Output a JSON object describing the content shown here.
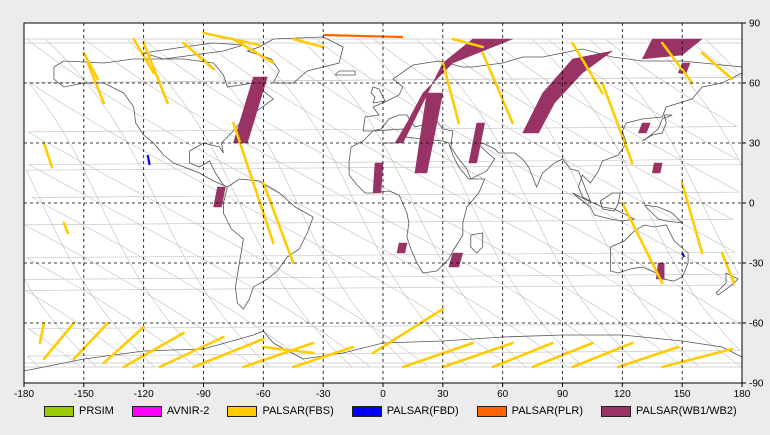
{
  "map": {
    "lon_range": [
      -180,
      180
    ],
    "lat_range": [
      -90,
      90
    ],
    "x_ticks": [
      -180,
      -150,
      -120,
      -90,
      -60,
      -30,
      0,
      30,
      60,
      90,
      120,
      150,
      180
    ],
    "x_tick_labels": [
      "-180",
      "-150",
      "-120",
      "-90",
      "-60",
      "-30",
      "0",
      "30",
      "60",
      "90",
      "120",
      "150",
      "180"
    ],
    "y_ticks": [
      90,
      60,
      30,
      0,
      -30,
      -60,
      -90
    ],
    "y_tick_labels": [
      "90",
      "60",
      "30",
      "0",
      "-30",
      "-60",
      "-90"
    ],
    "grid": "dashed",
    "background_color": "#ffffff",
    "coastline_color": "#555555",
    "orbit_color": "#c8c8c8",
    "orbit_start_lons": [
      -168,
      -139,
      -110,
      -81,
      -52,
      -23,
      6,
      35,
      64,
      93,
      122,
      151
    ],
    "coverage": {
      "fbs": [
        [
          [
            -170,
            -60
          ],
          [
            -172,
            -70
          ]
        ],
        [
          [
            -155,
            -60
          ],
          [
            -170,
            -78
          ]
        ],
        [
          [
            -138,
            -60
          ],
          [
            -155,
            -78
          ]
        ],
        [
          [
            -120,
            -62
          ],
          [
            -140,
            -80
          ]
        ],
        [
          [
            -100,
            -65
          ],
          [
            -130,
            -82
          ]
        ],
        [
          [
            -80,
            -67
          ],
          [
            -112,
            -82
          ]
        ],
        [
          [
            -60,
            -68
          ],
          [
            -95,
            -82
          ]
        ],
        [
          [
            -35,
            -70
          ],
          [
            -70,
            -82
          ]
        ],
        [
          [
            -15,
            -72
          ],
          [
            -45,
            -82
          ]
        ],
        [
          [
            30,
            -53
          ],
          [
            -5,
            -75
          ]
        ],
        [
          [
            45,
            -70
          ],
          [
            10,
            -82
          ]
        ],
        [
          [
            65,
            -70
          ],
          [
            30,
            -82
          ]
        ],
        [
          [
            85,
            -70
          ],
          [
            55,
            -82
          ]
        ],
        [
          [
            105,
            -70
          ],
          [
            75,
            -82
          ]
        ],
        [
          [
            125,
            -70
          ],
          [
            95,
            -82
          ]
        ],
        [
          [
            148,
            -72
          ],
          [
            118,
            -82
          ]
        ],
        [
          [
            175,
            -73
          ],
          [
            140,
            -82
          ]
        ],
        [
          [
            -150,
            75
          ],
          [
            -143,
            62
          ]
        ],
        [
          [
            -125,
            82
          ],
          [
            -115,
            65
          ]
        ],
        [
          [
            -100,
            80
          ],
          [
            -85,
            67
          ]
        ],
        [
          [
            -75,
            82
          ],
          [
            -55,
            70
          ]
        ],
        [
          [
            -45,
            82
          ],
          [
            -30,
            78
          ]
        ],
        [
          [
            -148,
            70
          ],
          [
            -140,
            50
          ]
        ],
        [
          [
            -120,
            80
          ],
          [
            -108,
            50
          ]
        ],
        [
          [
            -90,
            85
          ],
          [
            -62,
            79
          ]
        ],
        [
          [
            35,
            82
          ],
          [
            50,
            78
          ]
        ],
        [
          [
            -170,
            30
          ],
          [
            -166,
            18
          ]
        ],
        [
          [
            -75,
            40
          ],
          [
            -55,
            -20
          ]
        ],
        [
          [
            -60,
            10
          ],
          [
            -45,
            -30
          ]
        ],
        [
          [
            30,
            70
          ],
          [
            38,
            40
          ]
        ],
        [
          [
            50,
            75
          ],
          [
            65,
            40
          ]
        ],
        [
          [
            95,
            80
          ],
          [
            110,
            55
          ]
        ],
        [
          [
            110,
            60
          ],
          [
            125,
            20
          ]
        ],
        [
          [
            140,
            80
          ],
          [
            155,
            60
          ]
        ],
        [
          [
            160,
            75
          ],
          [
            175,
            62
          ]
        ],
        [
          [
            120,
            0
          ],
          [
            140,
            -40
          ]
        ],
        [
          [
            150,
            10
          ],
          [
            160,
            -25
          ]
        ],
        [
          [
            170,
            -25
          ],
          [
            176,
            -40
          ]
        ],
        [
          [
            -160,
            -10
          ],
          [
            -158,
            -15
          ]
        ],
        [
          [
            -60,
            -72
          ],
          [
            -35,
            -75
          ]
        ]
      ],
      "fbd": [
        [
          [
            -118,
            24
          ],
          [
            -117,
            19
          ]
        ],
        [
          [
            150,
            -25
          ],
          [
            151,
            -27
          ]
        ]
      ],
      "plr": [
        [
          [
            -30,
            84
          ],
          [
            10,
            83
          ]
        ]
      ]
    },
    "wide_swaths": [
      {
        "points": [
          [
            -65,
            63
          ],
          [
            -58,
            63
          ],
          [
            -68,
            30
          ],
          [
            -75,
            30
          ]
        ]
      },
      {
        "points": [
          [
            -83,
            8
          ],
          [
            -79,
            8
          ],
          [
            -81,
            -2
          ],
          [
            -85,
            -2
          ]
        ]
      },
      {
        "points": [
          [
            0,
            30
          ],
          [
            10,
            30
          ],
          [
            20,
            50
          ],
          [
            30,
            70
          ],
          [
            45,
            82
          ],
          [
            65,
            82
          ],
          [
            35,
            70
          ],
          [
            20,
            55
          ],
          [
            12,
            40
          ],
          [
            6,
            30
          ]
        ]
      },
      {
        "points": [
          [
            -5,
            5
          ],
          [
            -1,
            5
          ],
          [
            0,
            20
          ],
          [
            -4,
            20
          ]
        ]
      },
      {
        "points": [
          [
            22,
            55
          ],
          [
            30,
            55
          ],
          [
            22,
            15
          ],
          [
            16,
            15
          ]
        ]
      },
      {
        "points": [
          [
            47,
            40
          ],
          [
            51,
            40
          ],
          [
            47,
            20
          ],
          [
            43,
            20
          ]
        ]
      },
      {
        "points": [
          [
            35,
            -25
          ],
          [
            40,
            -25
          ],
          [
            38,
            -32
          ],
          [
            33,
            -32
          ]
        ]
      },
      {
        "points": [
          [
            8,
            -20
          ],
          [
            12,
            -20
          ],
          [
            11,
            -25
          ],
          [
            7,
            -25
          ]
        ]
      },
      {
        "points": [
          [
            70,
            35
          ],
          [
            80,
            55
          ],
          [
            95,
            72
          ],
          [
            115,
            76
          ],
          [
            100,
            65
          ],
          [
            86,
            50
          ],
          [
            78,
            35
          ]
        ]
      },
      {
        "points": [
          [
            135,
            82
          ],
          [
            160,
            82
          ],
          [
            150,
            74
          ],
          [
            130,
            72
          ]
        ]
      },
      {
        "points": [
          [
            130,
            40
          ],
          [
            134,
            40
          ],
          [
            132,
            35
          ],
          [
            128,
            35
          ]
        ]
      },
      {
        "points": [
          [
            136,
            20
          ],
          [
            140,
            20
          ],
          [
            139,
            15
          ],
          [
            135,
            15
          ]
        ]
      },
      {
        "points": [
          [
            138,
            -30
          ],
          [
            141,
            -30
          ],
          [
            141,
            -38
          ],
          [
            137,
            -38
          ]
        ]
      },
      {
        "points": [
          [
            150,
            70
          ],
          [
            154,
            70
          ],
          [
            152,
            65
          ],
          [
            148,
            65
          ]
        ]
      }
    ]
  },
  "legend": [
    {
      "label": "PRSIM",
      "color": "#99cc00"
    },
    {
      "label": "AVNIR-2",
      "color": "#ff00ff"
    },
    {
      "label": "PALSAR(FBS)",
      "color": "#ffcc00"
    },
    {
      "label": "PALSAR(FBD)",
      "color": "#0000ff"
    },
    {
      "label": "PALSAR(PLR)",
      "color": "#ff6600"
    },
    {
      "label": "PALSAR(WB1/WB2)",
      "color": "#993366"
    }
  ],
  "colors": {
    "fbs": "#ffcc00",
    "fbd": "#0000ff",
    "plr": "#ff6600",
    "wb": "#993366"
  }
}
